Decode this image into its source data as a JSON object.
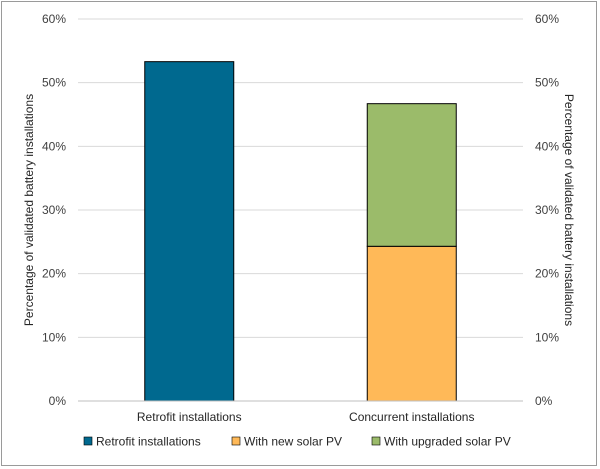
{
  "chart_data": {
    "type": "bar",
    "stacked": true,
    "title": "",
    "categories": [
      "Retrofit installations",
      "Concurrent installations"
    ],
    "series": [
      {
        "name": "Retrofit installations",
        "values": [
          53.3,
          0
        ],
        "color": "#00698f"
      },
      {
        "name": "With new solar PV",
        "values": [
          0,
          24.3
        ],
        "color": "#ffb958"
      },
      {
        "name": "With upgraded solar PV",
        "values": [
          0,
          22.4
        ],
        "color": "#9bbb6a"
      }
    ],
    "ylabel_left": "Percentage of validated battery installations",
    "ylabel_right": "Percentage of validated battery installations",
    "ylim": [
      0,
      60
    ],
    "yticks": [
      "0%",
      "10%",
      "20%",
      "30%",
      "40%",
      "50%",
      "60%"
    ],
    "grid": true,
    "legend_position": "bottom"
  }
}
